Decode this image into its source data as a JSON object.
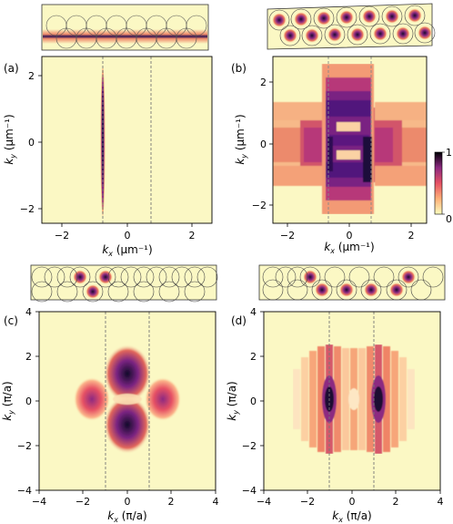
{
  "panels": [
    {
      "label": "(a)",
      "xlabel": "k",
      "xlabel_sub": "x",
      "xlabel_unit": " (µm⁻¹)",
      "ylabel": "k",
      "ylabel_sub": "y",
      "ylabel_unit": " (µm⁻¹)",
      "xticks": [
        "−2",
        "0",
        "2"
      ],
      "yticks": [
        "2",
        "0",
        "−2"
      ]
    },
    {
      "label": "(b)",
      "xlabel": "k",
      "xlabel_sub": "x",
      "xlabel_unit": " (µm⁻¹)",
      "ylabel": "k",
      "ylabel_sub": "y",
      "ylabel_unit": " (µm⁻¹)",
      "xticks": [
        "−2",
        "0",
        "2"
      ],
      "yticks": [
        "2",
        "0",
        "−2"
      ]
    },
    {
      "label": "(c)",
      "xlabel": "k",
      "xlabel_sub": "x",
      "xlabel_unit": " (π/a)",
      "ylabel": "k",
      "ylabel_sub": "y",
      "ylabel_unit": " (π/a)",
      "xticks": [
        "−4",
        "−2",
        "0",
        "2",
        "4"
      ],
      "yticks": [
        "4",
        "2",
        "0",
        "−2",
        "−4"
      ]
    },
    {
      "label": "(d)",
      "xlabel": "k",
      "xlabel_sub": "x",
      "xlabel_unit": " (π/a)",
      "ylabel": "k",
      "ylabel_sub": "y",
      "ylabel_unit": " (π/a)",
      "xticks": [
        "−4",
        "−2",
        "0",
        "2",
        "4"
      ],
      "yticks": [
        "4",
        "2",
        "0",
        "−2",
        "−4"
      ]
    }
  ],
  "colorbar": {
    "max_label": "1",
    "min_label": "0"
  },
  "colors": {
    "background": "#fbf8c4",
    "low": "#fcfdbf",
    "mid": "#e65164",
    "high": "#000004"
  }
}
